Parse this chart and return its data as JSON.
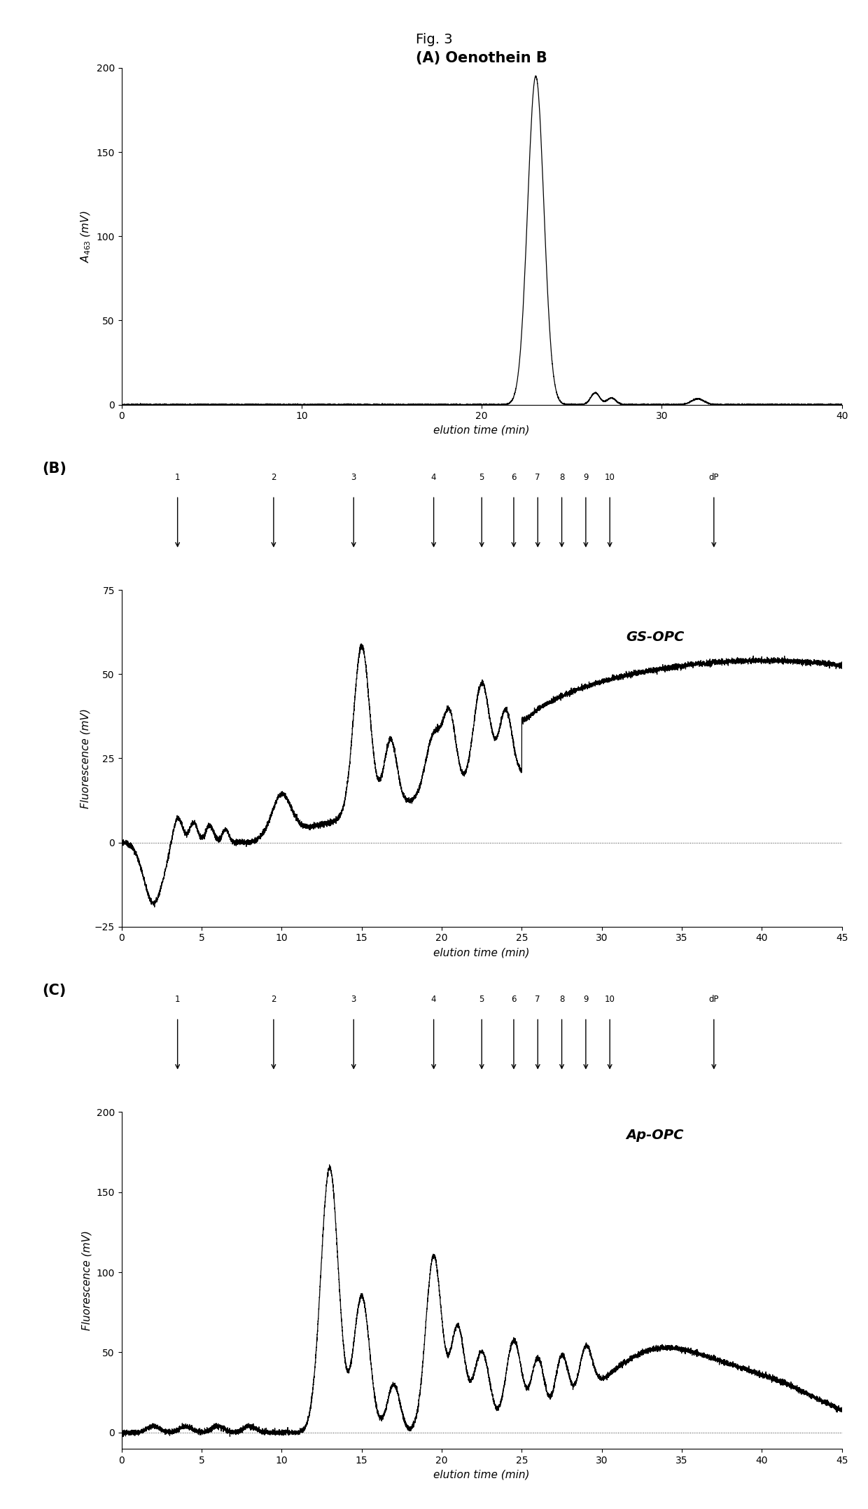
{
  "fig_title": "Fig. 3",
  "panel_A_title": "(A) Oenothein B",
  "panel_B_label_text": "(B)",
  "panel_C_label_text": "(C)",
  "panel_B_sample": "GS-OPC",
  "panel_C_sample": "Ap-OPC",
  "ylabel_A": "A$_{463}$ (mV)",
  "ylabel_BC": "Fluorescence (mV)",
  "xlabel": "elution time (min)",
  "A_xlim": [
    0,
    40
  ],
  "A_ylim": [
    0,
    200
  ],
  "A_yticks": [
    0,
    50,
    100,
    150,
    200
  ],
  "A_xticks": [
    0,
    10,
    20,
    30,
    40
  ],
  "BC_xlim": [
    0,
    45
  ],
  "BC_xticks": [
    0,
    5,
    10,
    15,
    20,
    25,
    30,
    35,
    40,
    45
  ],
  "B_ylim": [
    -25,
    75
  ],
  "B_yticks": [
    -25,
    0,
    25,
    50,
    75
  ],
  "C_ylim": [
    -10,
    200
  ],
  "C_yticks": [
    0,
    50,
    100,
    150,
    200
  ],
  "arrow_times": [
    3.5,
    9.5,
    14.5,
    19.5,
    22.5,
    24.5,
    26.0,
    27.5,
    29.0,
    30.5,
    37.0
  ],
  "arrow_labels": [
    "1",
    "2",
    "3",
    "4",
    "5",
    "6",
    "7",
    "8",
    "9",
    "10",
    "dP"
  ]
}
